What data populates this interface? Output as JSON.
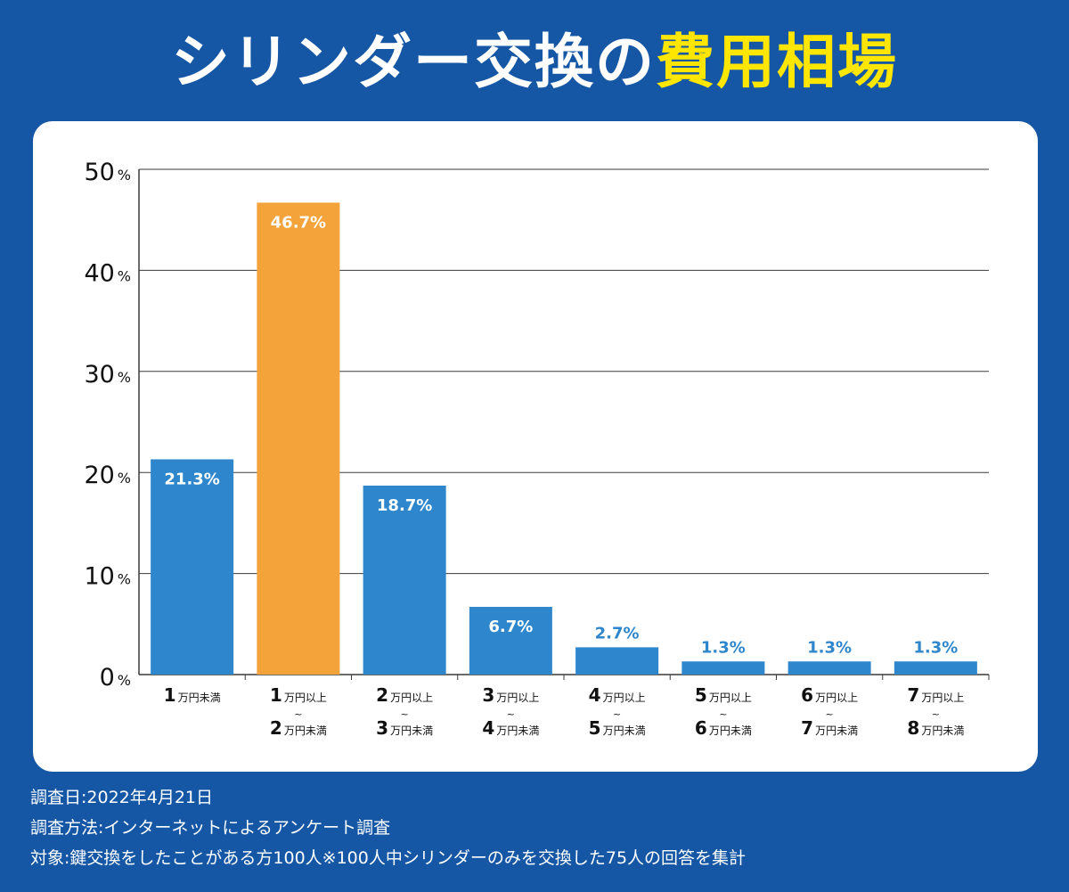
{
  "title": {
    "main": "シリンダー交換の",
    "highlight": "費用相場"
  },
  "colors": {
    "background": "#1557a5",
    "bar": "#2e87cc",
    "highlight_bar": "#f4a23a",
    "title_highlight": "#ffe600"
  },
  "chart_data": {
    "type": "bar",
    "ylim": [
      0,
      50
    ],
    "yticks": [
      {
        "value": 0,
        "label": "0"
      },
      {
        "value": 10,
        "label": "10"
      },
      {
        "value": 20,
        "label": "20"
      },
      {
        "value": 30,
        "label": "30"
      },
      {
        "value": 40,
        "label": "40"
      },
      {
        "value": 50,
        "label": "50"
      }
    ],
    "yunit": "%",
    "grid": true,
    "categories": [
      {
        "lines": [
          {
            "num": "1",
            "text": "万円未満"
          }
        ]
      },
      {
        "lines": [
          {
            "num": "1",
            "text": "万円以上"
          },
          {
            "num": "2",
            "text": "万円未満"
          }
        ]
      },
      {
        "lines": [
          {
            "num": "2",
            "text": "万円以上"
          },
          {
            "num": "3",
            "text": "万円未満"
          }
        ]
      },
      {
        "lines": [
          {
            "num": "3",
            "text": "万円以上"
          },
          {
            "num": "4",
            "text": "万円未満"
          }
        ]
      },
      {
        "lines": [
          {
            "num": "4",
            "text": "万円以上"
          },
          {
            "num": "5",
            "text": "万円未満"
          }
        ]
      },
      {
        "lines": [
          {
            "num": "5",
            "text": "万円以上"
          },
          {
            "num": "6",
            "text": "万円未満"
          }
        ]
      },
      {
        "lines": [
          {
            "num": "6",
            "text": "万円以上"
          },
          {
            "num": "7",
            "text": "万円未満"
          }
        ]
      },
      {
        "lines": [
          {
            "num": "7",
            "text": "万円以上"
          },
          {
            "num": "8",
            "text": "万円未満"
          }
        ]
      }
    ],
    "range_separator": "~",
    "values": [
      21.3,
      46.7,
      18.7,
      6.7,
      2.7,
      1.3,
      1.3,
      1.3
    ],
    "labels": [
      "21.3%",
      "46.7%",
      "18.7%",
      "6.7%",
      "2.7%",
      "1.3%",
      "1.3%",
      "1.3%"
    ],
    "highlight_index": 1
  },
  "footer": {
    "line1": "調査日:2022年4月21日",
    "line2": "調査方法:インターネットによるアンケート調査",
    "line3": "対象:鍵交換をしたことがある方100人※100人中シリンダーのみを交換した75人の回答を集計"
  }
}
